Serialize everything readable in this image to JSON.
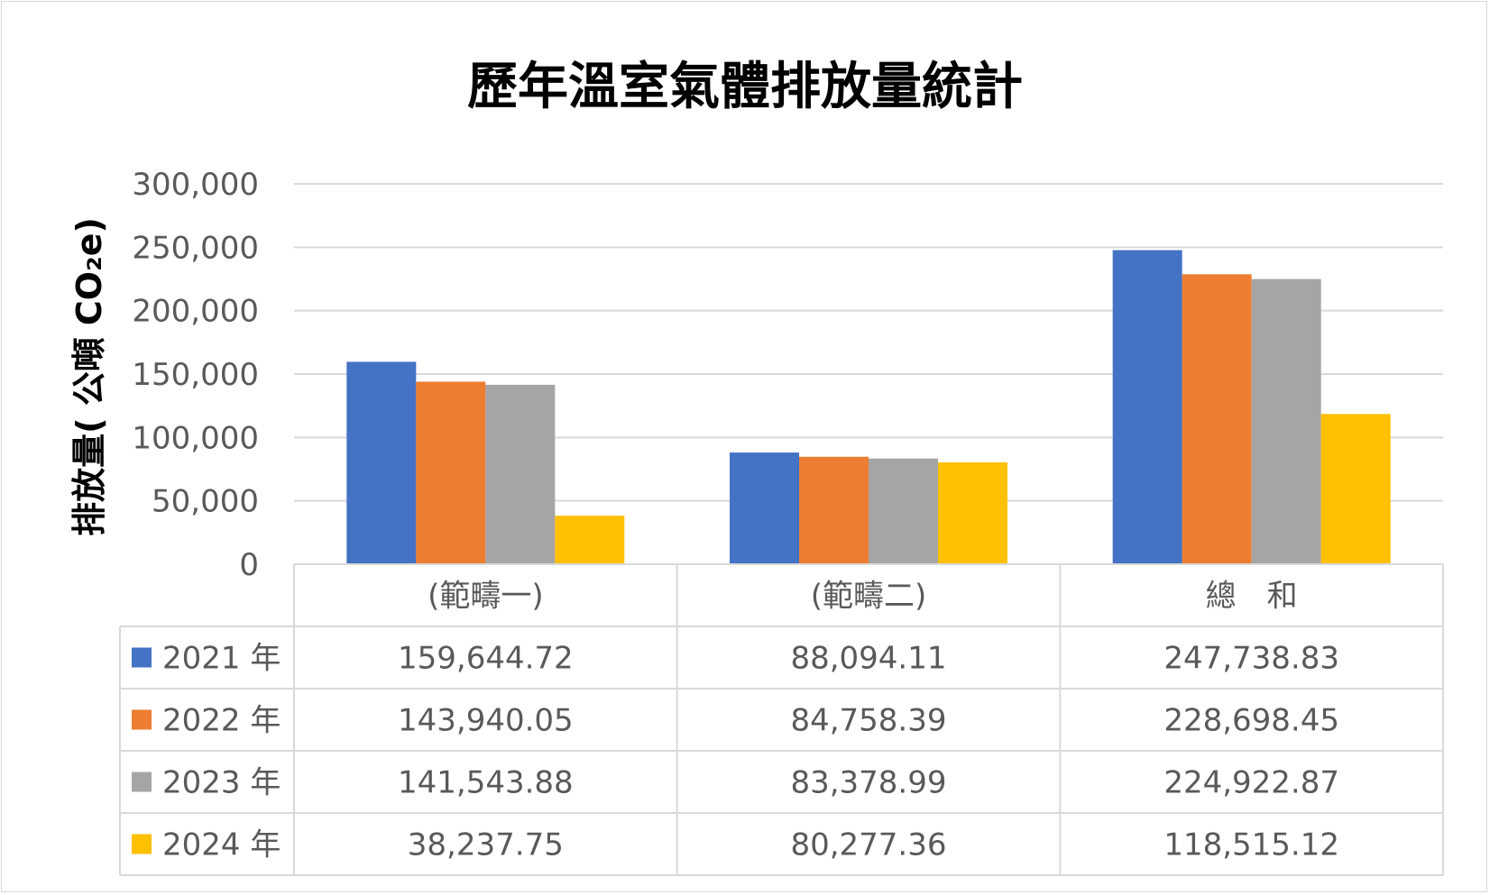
{
  "chart_data": {
    "type": "bar",
    "title": "歷年溫室氣體排放量統計",
    "ylabel": "排放量( 公噸 CO₂e)",
    "ylim": [
      0,
      300000
    ],
    "yticks": [
      "0",
      "50,000",
      "100,000",
      "150,000",
      "200,000",
      "250,000",
      "300,000"
    ],
    "ytick_values": [
      0,
      50000,
      100000,
      150000,
      200000,
      250000,
      300000
    ],
    "grid": true,
    "legend_placement": "data-table",
    "categories": [
      "(範疇一)",
      "(範疇二)",
      "總　和"
    ],
    "series": [
      {
        "name": "2021 年",
        "color": "#4472C4",
        "values": [
          159644.72,
          88094.11,
          247738.83
        ],
        "labels": [
          "159,644.72",
          "88,094.11",
          "247,738.83"
        ]
      },
      {
        "name": "2022 年",
        "color": "#ED7D31",
        "values": [
          143940.05,
          84758.39,
          228698.45
        ],
        "labels": [
          "143,940.05",
          "84,758.39",
          "228,698.45"
        ]
      },
      {
        "name": "2023 年",
        "color": "#A5A5A5",
        "values": [
          141543.88,
          83378.99,
          224922.87
        ],
        "labels": [
          "141,543.88",
          "83,378.99",
          "224,922.87"
        ]
      },
      {
        "name": "2024 年",
        "color": "#FFC000",
        "values": [
          38237.75,
          80277.36,
          118515.12
        ],
        "labels": [
          "38,237.75",
          "80,277.36",
          "118,515.12"
        ]
      }
    ]
  }
}
